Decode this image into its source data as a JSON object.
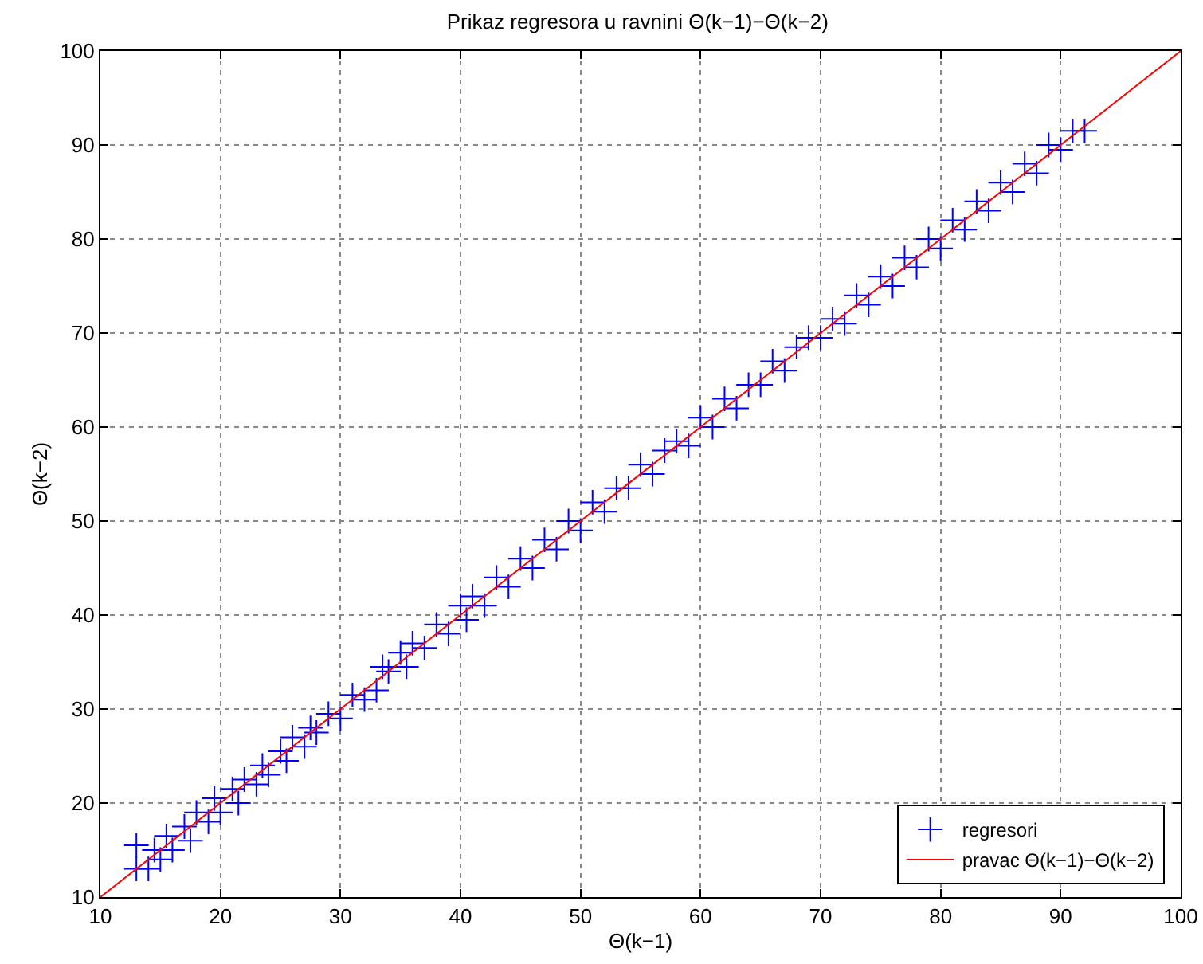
{
  "chart_data": {
    "type": "scatter",
    "title": "Prikaz regresora u ravnini Θ(k−1)−Θ(k−2)",
    "xlabel": "Θ(k−1)",
    "ylabel": "Θ(k−2)",
    "xlim": [
      10,
      100
    ],
    "ylim": [
      10,
      100
    ],
    "xticks": [
      10,
      20,
      30,
      40,
      50,
      60,
      70,
      80,
      90,
      100
    ],
    "yticks": [
      10,
      20,
      30,
      40,
      50,
      60,
      70,
      80,
      90,
      100
    ],
    "grid": true,
    "legend": "bottom right",
    "series": [
      {
        "name": "regresori",
        "type": "scatter",
        "marker": "cross",
        "color": "#0000ff",
        "x": [
          13,
          13,
          14,
          14.5,
          15,
          15.5,
          16,
          17,
          17.5,
          18,
          19,
          19.5,
          20,
          21,
          21.5,
          22,
          23,
          23.5,
          24,
          25,
          25.5,
          26,
          27,
          27.5,
          28,
          29,
          30,
          31,
          32,
          33,
          33.5,
          34,
          35,
          35.5,
          36,
          37,
          38,
          39,
          40,
          40.5,
          41,
          42,
          43,
          44,
          45,
          46,
          47,
          48,
          49,
          50,
          51,
          52,
          53,
          54,
          55,
          56,
          57,
          58,
          59,
          60,
          61,
          62,
          63,
          64,
          65,
          66,
          67,
          68,
          69,
          70,
          71,
          72,
          73,
          74,
          75,
          76,
          77,
          78,
          79,
          80,
          81,
          82,
          83,
          84,
          85,
          86,
          87,
          88,
          89,
          90,
          91,
          92
        ],
        "values": [
          13,
          15.5,
          13,
          15,
          14,
          16.5,
          15,
          17.5,
          16,
          19,
          18,
          20.5,
          19,
          21.5,
          20,
          22.5,
          22,
          24,
          23,
          25.5,
          24.5,
          27,
          26,
          28,
          27.5,
          29.5,
          29,
          31.5,
          31,
          32,
          34.5,
          34,
          36,
          34.5,
          37,
          36.5,
          39,
          38,
          41,
          39.5,
          42,
          41,
          44,
          43,
          46,
          45,
          48,
          47,
          50,
          49,
          52,
          51,
          53.5,
          53.5,
          56,
          55,
          57.5,
          58.5,
          58,
          61,
          60,
          63,
          62,
          64.5,
          64.5,
          67,
          66,
          68.5,
          69.5,
          69.5,
          71.5,
          71,
          74,
          73,
          76,
          75,
          78,
          77,
          80,
          79,
          82,
          81,
          84,
          83,
          86,
          85,
          88,
          87,
          90,
          89.5,
          91.5,
          91.5
        ]
      },
      {
        "name": "pravac Θ(k−1)−Θ(k−2)",
        "type": "line",
        "line_style": "solid",
        "color": "#ff0000",
        "x": [
          10,
          100
        ],
        "values": [
          10,
          100
        ]
      }
    ]
  }
}
